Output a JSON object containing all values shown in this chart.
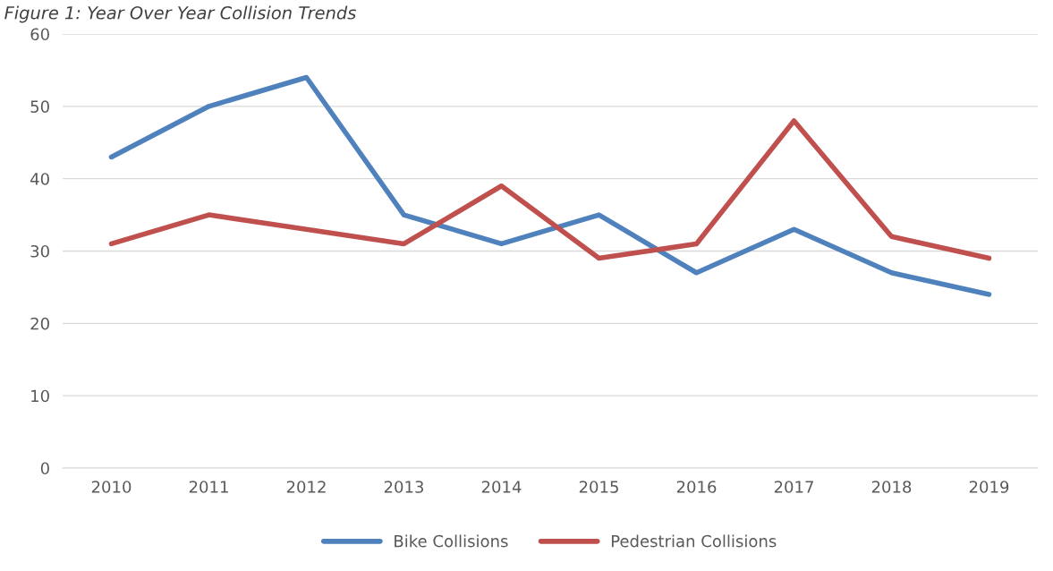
{
  "chart_data": {
    "type": "line",
    "title": "Figure 1: Year Over Year Collision Trends",
    "categories": [
      "2010",
      "2011",
      "2012",
      "2013",
      "2014",
      "2015",
      "2016",
      "2017",
      "2018",
      "2019"
    ],
    "series": [
      {
        "name": "Bike Collisions",
        "color": "#4f81bd",
        "values": [
          43,
          50,
          54,
          35,
          31,
          35,
          27,
          33,
          27,
          24
        ]
      },
      {
        "name": "Pedestrian Collisions",
        "color": "#c0504d",
        "values": [
          31,
          35,
          33,
          31,
          39,
          29,
          31,
          48,
          32,
          29
        ]
      }
    ],
    "ylim": [
      0,
      60
    ],
    "yticks": [
      0,
      10,
      20,
      30,
      40,
      50,
      60
    ],
    "grid": "y",
    "legend": "bottom",
    "marker": "none",
    "line_style": "solid"
  }
}
